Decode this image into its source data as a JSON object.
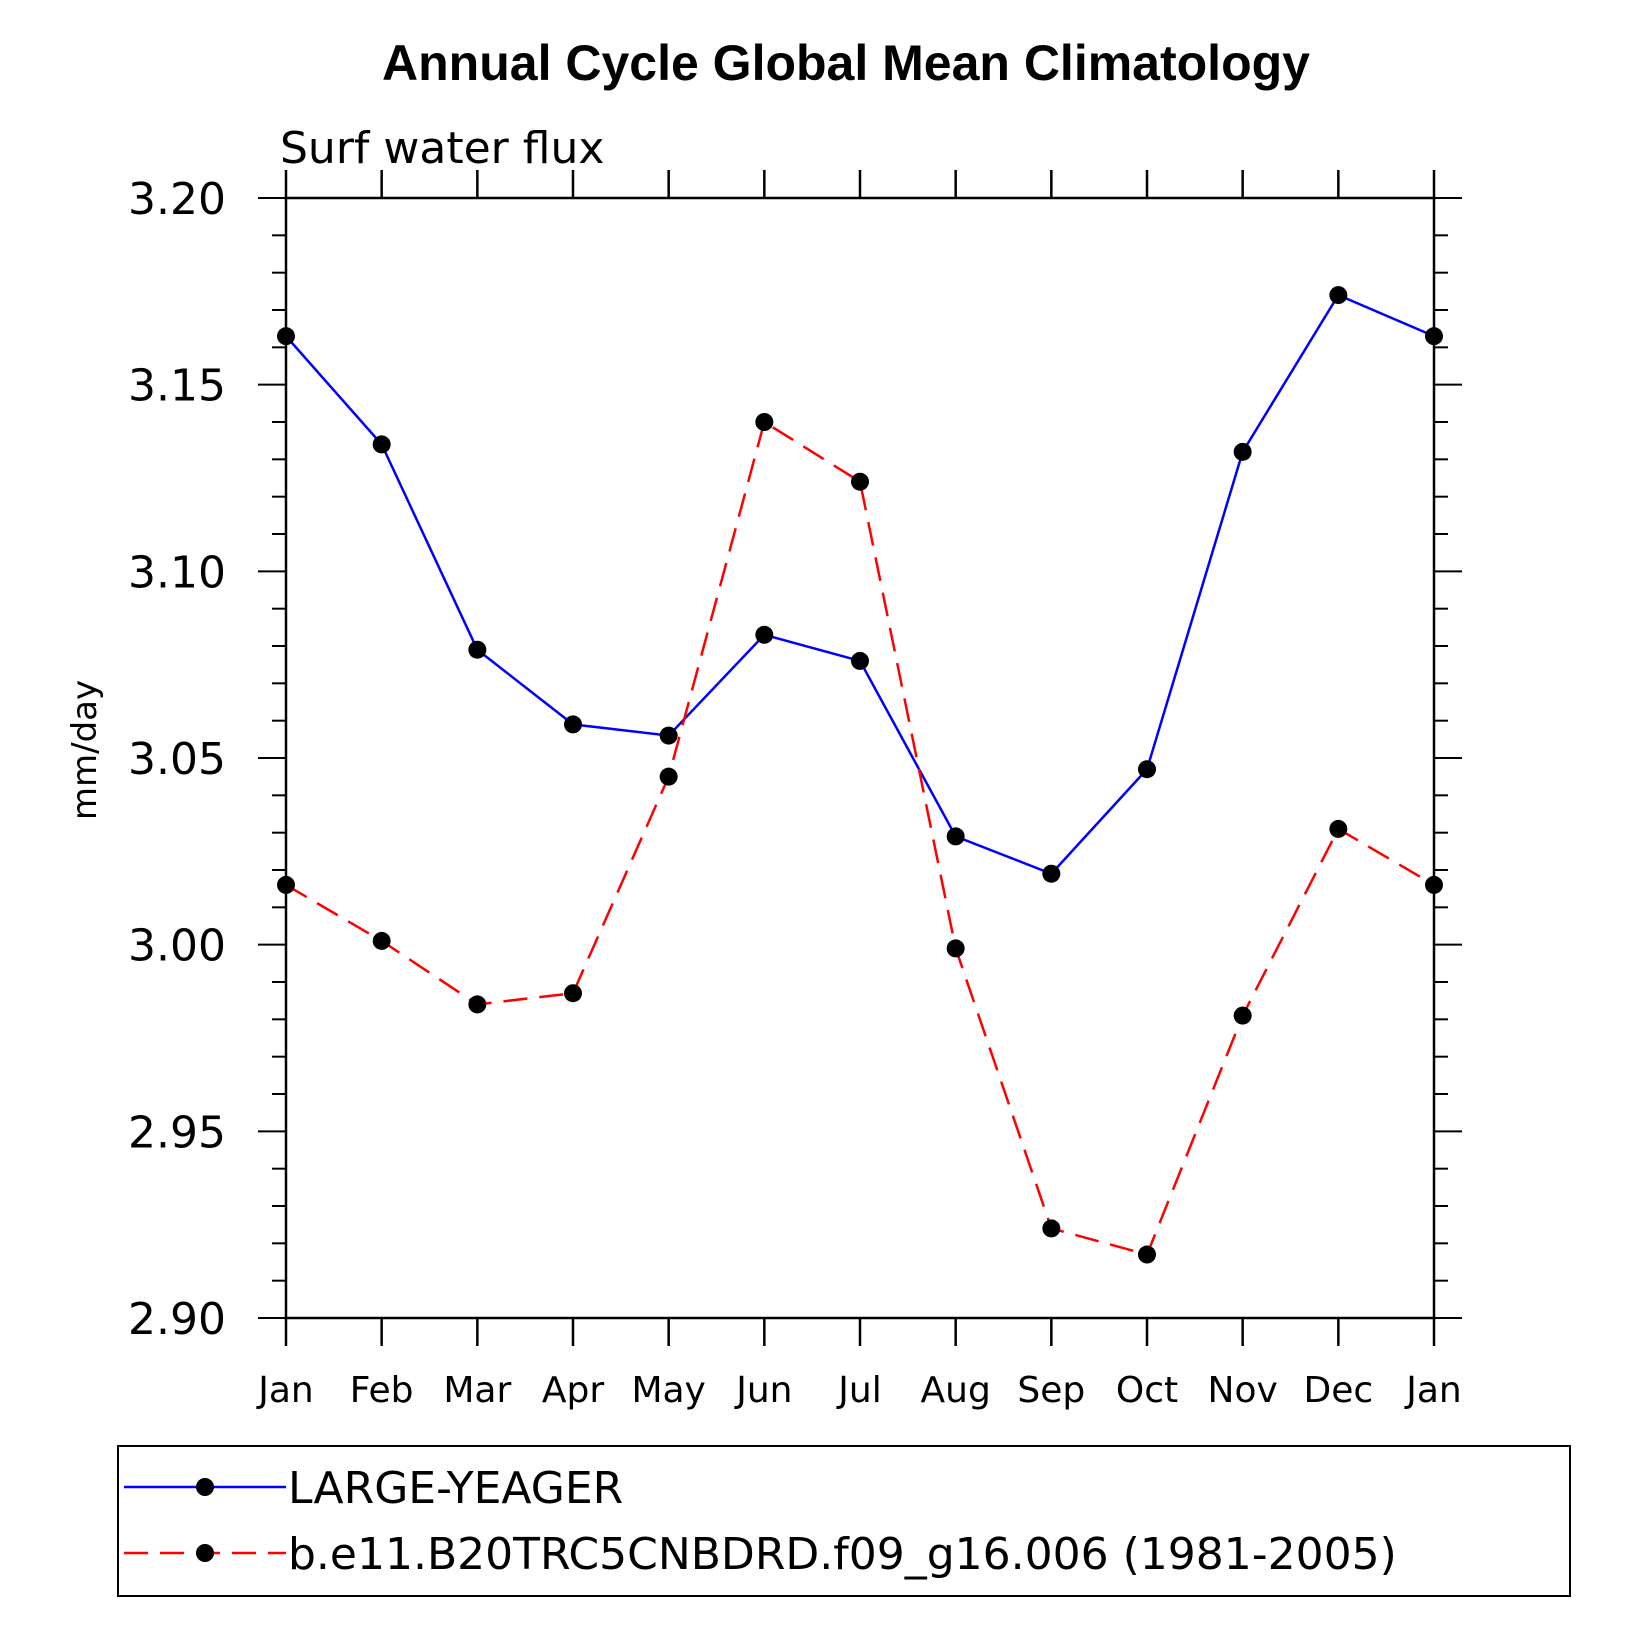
{
  "chart_data": {
    "type": "line",
    "title": "Annual Cycle Global Mean Climatology",
    "subtitle": "Surf water flux",
    "ylabel": "mm/day",
    "xlabel": "",
    "categories": [
      "Jan",
      "Feb",
      "Mar",
      "Apr",
      "May",
      "Jun",
      "Jul",
      "Aug",
      "Sep",
      "Oct",
      "Nov",
      "Dec",
      "Jan"
    ],
    "ylim": [
      2.9,
      3.2
    ],
    "yticks": [
      "3.20",
      "3.15",
      "3.10",
      "3.05",
      "3.00",
      "2.95",
      "2.90"
    ],
    "grid": false,
    "legend_position": "bottom",
    "series": [
      {
        "name": "LARGE-YEAGER",
        "color": "#0000ff",
        "dash": "solid",
        "marker": "filled-circle",
        "values": [
          3.163,
          3.134,
          3.079,
          3.059,
          3.056,
          3.083,
          3.076,
          3.029,
          3.019,
          3.047,
          3.132,
          3.174,
          3.163
        ]
      },
      {
        "name": "b.e11.B20TRC5CNBDRD.f09_g16.006 (1981-2005)",
        "color": "#ff0000",
        "dash": "dashed",
        "marker": "filled-circle",
        "values": [
          3.016,
          3.001,
          2.984,
          2.987,
          3.045,
          3.14,
          3.124,
          2.999,
          2.924,
          2.917,
          2.981,
          3.031,
          3.016
        ]
      }
    ]
  }
}
